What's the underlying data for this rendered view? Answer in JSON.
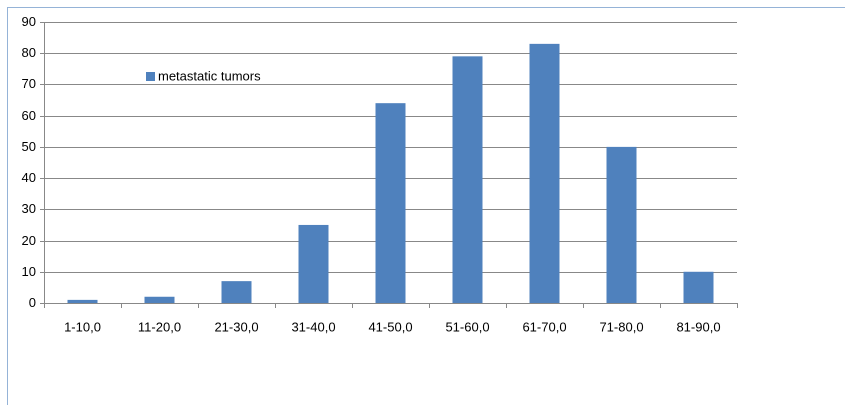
{
  "chart_data": {
    "type": "bar",
    "categories": [
      "1-10,0",
      "11-20,0",
      "21-30,0",
      "31-40,0",
      "41-50,0",
      "51-60,0",
      "61-70,0",
      "71-80,0",
      "81-90,0"
    ],
    "series": [
      {
        "name": "metastatic tumors",
        "color": "#4f81bd",
        "values": [
          1,
          2,
          7,
          25,
          64,
          79,
          83,
          50,
          10
        ]
      }
    ],
    "ylim": [
      0,
      90
    ],
    "yticks": [
      0,
      10,
      20,
      30,
      40,
      50,
      60,
      70,
      80,
      90
    ],
    "grid": true,
    "legend": "upper left"
  }
}
